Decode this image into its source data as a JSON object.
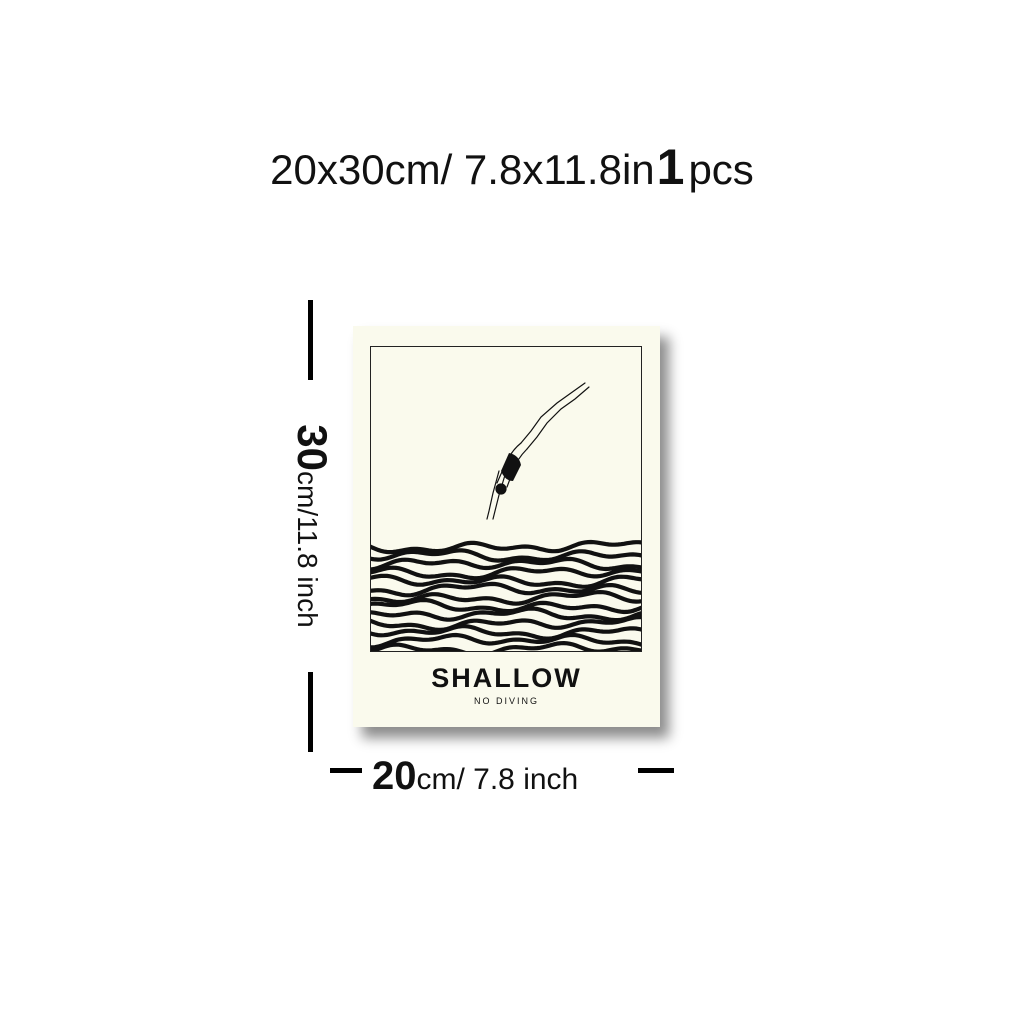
{
  "heading": {
    "size_text": "20x30cm/ 7.8x11.8in",
    "quantity": "1",
    "unit": "pcs"
  },
  "poster": {
    "title": "SHALLOW",
    "subtitle": "NO DIVING",
    "paper_color": "#fafaed",
    "ink_color": "#111111"
  },
  "height_dimension": {
    "number": "30",
    "unit": "cm/11.8 inch"
  },
  "width_dimension": {
    "number": "20",
    "unit": "cm/ 7.8 inch"
  }
}
